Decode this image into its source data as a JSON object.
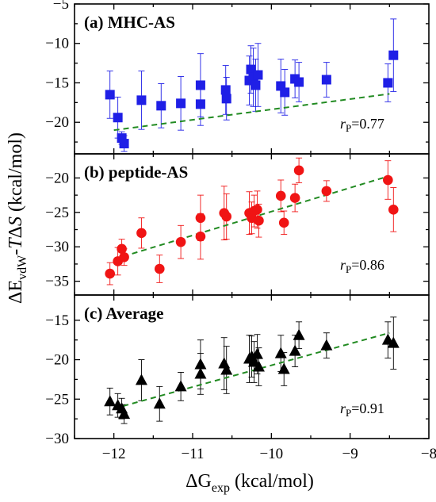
{
  "chart_data": {
    "type": "scatter",
    "x_axis": {
      "label_main": "ΔG",
      "label_sub": "exp",
      "label_unit": " (kcal/mol)",
      "lim": [
        -12.5,
        -8
      ],
      "ticks": [
        -12,
        -11,
        -10,
        -9,
        -8
      ],
      "tick_labels": [
        "−12",
        "−11",
        "−10",
        "−9",
        "−8"
      ]
    },
    "y_axis": {
      "label_a": "ΔE",
      "label_sub": "vdW",
      "label_b": "-",
      "label_c": "T",
      "label_d": "Δ",
      "label_e": "S",
      "label_f": "  (kcal/mol)"
    },
    "panels": [
      {
        "title": "(a) MHC-AS",
        "marker": "square",
        "color": "#1f1fe6",
        "ylim": [
          -24,
          -5
        ],
        "yticks": [
          -20,
          -15,
          -10,
          -5
        ],
        "ytick_labels": [
          "−20",
          "−15",
          "−10",
          "−5"
        ],
        "rp_label": "r",
        "rp_sub": "P",
        "rp_value": "=0.77",
        "fit": {
          "x": [
            -12.0,
            -8.5
          ],
          "y": [
            -21.0,
            -16.4
          ]
        },
        "points": [
          {
            "x": -12.05,
            "y": -16.5,
            "err": 3.0
          },
          {
            "x": -11.95,
            "y": -19.4,
            "err": 2.6
          },
          {
            "x": -11.9,
            "y": -22.0,
            "err": 0.8
          },
          {
            "x": -11.87,
            "y": -22.7,
            "err": 1.0
          },
          {
            "x": -11.65,
            "y": -17.2,
            "err": 3.7
          },
          {
            "x": -11.4,
            "y": -17.9,
            "err": 2.8
          },
          {
            "x": -11.15,
            "y": -17.6,
            "err": 3.4
          },
          {
            "x": -10.9,
            "y": -15.3,
            "err": 4.0
          },
          {
            "x": -10.9,
            "y": -17.7,
            "err": 2.7
          },
          {
            "x": -10.58,
            "y": -15.9,
            "err": 3.1
          },
          {
            "x": -10.57,
            "y": -17.0,
            "err": 2.7
          },
          {
            "x": -10.28,
            "y": -14.7,
            "err": 3.1
          },
          {
            "x": -10.26,
            "y": -13.3,
            "err": 3.0
          },
          {
            "x": -10.23,
            "y": -14.3,
            "err": 3.7
          },
          {
            "x": -10.2,
            "y": -15.3,
            "err": 3.3
          },
          {
            "x": -10.17,
            "y": -14.0,
            "err": 4.0
          },
          {
            "x": -9.88,
            "y": -15.4,
            "err": 3.4
          },
          {
            "x": -9.83,
            "y": -16.2,
            "err": 2.9
          },
          {
            "x": -9.7,
            "y": -14.5,
            "err": 2.4
          },
          {
            "x": -9.65,
            "y": -14.9,
            "err": 2.5
          },
          {
            "x": -9.3,
            "y": -14.6,
            "err": 2.2
          },
          {
            "x": -8.52,
            "y": -15.0,
            "err": 2.4
          },
          {
            "x": -8.45,
            "y": -11.5,
            "err": 4.6
          }
        ]
      },
      {
        "title": "(b) peptide-AS",
        "marker": "circle",
        "color": "#f01414",
        "ylim": [
          -37,
          -16.5
        ],
        "yticks": [
          -35,
          -30,
          -25,
          -20
        ],
        "ytick_labels": [
          "−35",
          "−30",
          "−25",
          "−20"
        ],
        "rp_label": "r",
        "rp_sub": "P",
        "rp_value": "=0.86",
        "fit": {
          "x": [
            -12.0,
            -8.5
          ],
          "y": [
            -31.8,
            -19.7
          ]
        },
        "points": [
          {
            "x": -12.05,
            "y": -33.9,
            "err": 1.6
          },
          {
            "x": -11.95,
            "y": -32.1,
            "err": 2.0
          },
          {
            "x": -11.9,
            "y": -30.3,
            "err": 1.4
          },
          {
            "x": -11.87,
            "y": -31.5,
            "err": 1.2
          },
          {
            "x": -11.65,
            "y": -28.0,
            "err": 2.2
          },
          {
            "x": -11.42,
            "y": -33.2,
            "err": 2.0
          },
          {
            "x": -11.15,
            "y": -29.3,
            "err": 2.4
          },
          {
            "x": -10.9,
            "y": -25.8,
            "err": 3.3
          },
          {
            "x": -10.9,
            "y": -28.5,
            "err": 3.3
          },
          {
            "x": -10.6,
            "y": -25.1,
            "err": 3.9
          },
          {
            "x": -10.57,
            "y": -25.6,
            "err": 3.3
          },
          {
            "x": -10.28,
            "y": -25.1,
            "err": 3.1
          },
          {
            "x": -10.25,
            "y": -25.8,
            "err": 2.3
          },
          {
            "x": -10.22,
            "y": -24.8,
            "err": 2.3
          },
          {
            "x": -10.18,
            "y": -24.6,
            "err": 2.7
          },
          {
            "x": -10.16,
            "y": -26.2,
            "err": 2.4
          },
          {
            "x": -9.88,
            "y": -22.6,
            "err": 2.3
          },
          {
            "x": -9.84,
            "y": -26.5,
            "err": 1.7
          },
          {
            "x": -9.7,
            "y": -22.9,
            "err": 2.0
          },
          {
            "x": -9.65,
            "y": -18.9,
            "err": 1.8
          },
          {
            "x": -9.3,
            "y": -21.9,
            "err": 1.5
          },
          {
            "x": -8.52,
            "y": -20.3,
            "err": 2.8
          },
          {
            "x": -8.45,
            "y": -24.6,
            "err": 3.2
          }
        ]
      },
      {
        "title": "(c) Average",
        "marker": "triangle",
        "color": "#000000",
        "ylim": [
          -30,
          -11.8
        ],
        "yticks": [
          -30,
          -25,
          -20,
          -15
        ],
        "ytick_labels": [
          "−30",
          "−25",
          "−20",
          "−15"
        ],
        "rp_label": "r",
        "rp_sub": "P",
        "rp_value": "=0.91",
        "fit": {
          "x": [
            -12.0,
            -8.5
          ],
          "y": [
            -26.2,
            -16.6
          ]
        },
        "points": [
          {
            "x": -12.05,
            "y": -25.3,
            "err": 1.7
          },
          {
            "x": -11.95,
            "y": -25.8,
            "err": 1.5
          },
          {
            "x": -11.9,
            "y": -26.2,
            "err": 1.3
          },
          {
            "x": -11.87,
            "y": -26.9,
            "err": 1.2
          },
          {
            "x": -11.65,
            "y": -22.6,
            "err": 2.6
          },
          {
            "x": -11.42,
            "y": -25.6,
            "err": 2.2
          },
          {
            "x": -11.15,
            "y": -23.4,
            "err": 1.8
          },
          {
            "x": -10.9,
            "y": -20.6,
            "err": 3.1
          },
          {
            "x": -10.9,
            "y": -21.8,
            "err": 2.6
          },
          {
            "x": -10.6,
            "y": -20.5,
            "err": 3.3
          },
          {
            "x": -10.57,
            "y": -21.3,
            "err": 3.0
          },
          {
            "x": -10.28,
            "y": -19.9,
            "err": 3.0
          },
          {
            "x": -10.25,
            "y": -19.6,
            "err": 2.6
          },
          {
            "x": -10.22,
            "y": -20.3,
            "err": 2.6
          },
          {
            "x": -10.18,
            "y": -19.3,
            "err": 2.5
          },
          {
            "x": -10.16,
            "y": -20.9,
            "err": 2.4
          },
          {
            "x": -9.88,
            "y": -19.2,
            "err": 2.3
          },
          {
            "x": -9.84,
            "y": -21.2,
            "err": 2.1
          },
          {
            "x": -9.7,
            "y": -18.9,
            "err": 2.0
          },
          {
            "x": -9.65,
            "y": -16.9,
            "err": 1.7
          },
          {
            "x": -9.3,
            "y": -18.2,
            "err": 1.6
          },
          {
            "x": -8.52,
            "y": -17.5,
            "err": 2.3
          },
          {
            "x": -8.45,
            "y": -17.9,
            "err": 3.3
          }
        ]
      }
    ]
  }
}
